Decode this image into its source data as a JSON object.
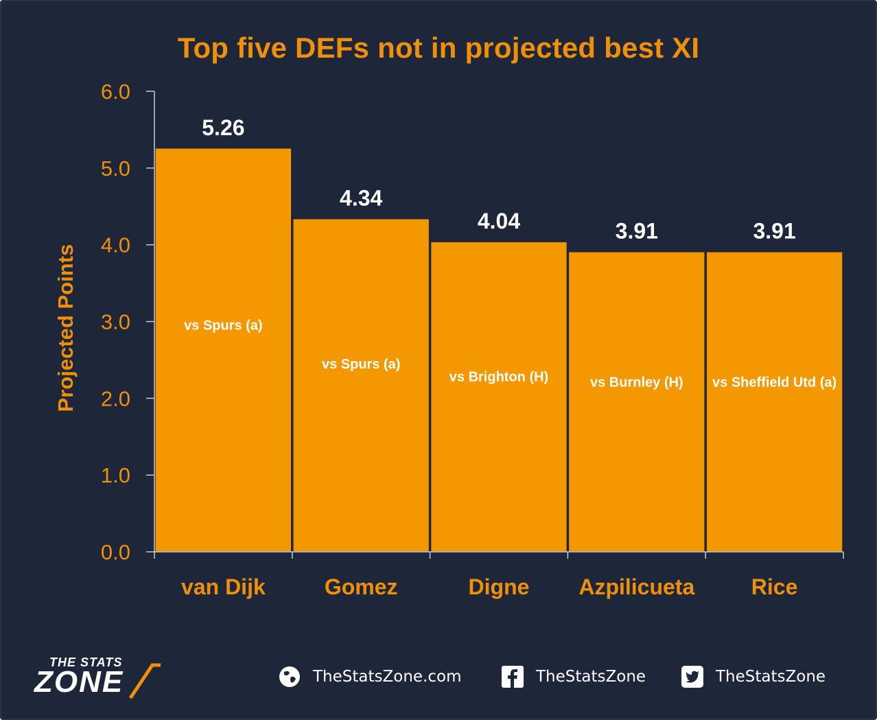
{
  "chart_data": {
    "type": "bar",
    "title": "Top five DEFs not in projected best XI",
    "ylabel": "Projected Points",
    "xlabel": "",
    "ylim": [
      0,
      6
    ],
    "yticks": [
      "0.0",
      "1.0",
      "2.0",
      "3.0",
      "4.0",
      "5.0",
      "6.0"
    ],
    "categories": [
      "van Dijk",
      "Gomez",
      "Digne",
      "Azpilicueta",
      "Rice"
    ],
    "values": [
      5.26,
      4.34,
      4.04,
      3.91,
      3.91
    ],
    "value_labels": [
      "5.26",
      "4.34",
      "4.04",
      "3.91",
      "3.91"
    ],
    "fixtures": [
      "vs Spurs (a)",
      "vs Spurs (a)",
      "vs Brighton (H)",
      "vs Burnley (H)",
      "vs Sheffield Utd (a)"
    ],
    "bar_color": "#f39800",
    "grid": false,
    "legend": "none"
  },
  "footer": {
    "logo_top": "THE STATS",
    "logo_main": "ZONE",
    "website": "TheStatsZone.com",
    "facebook": "TheStatsZone",
    "twitter": "TheStatsZone"
  },
  "colors": {
    "background": "#1e263a",
    "accent": "#f0900a",
    "text": "#ffffff"
  }
}
